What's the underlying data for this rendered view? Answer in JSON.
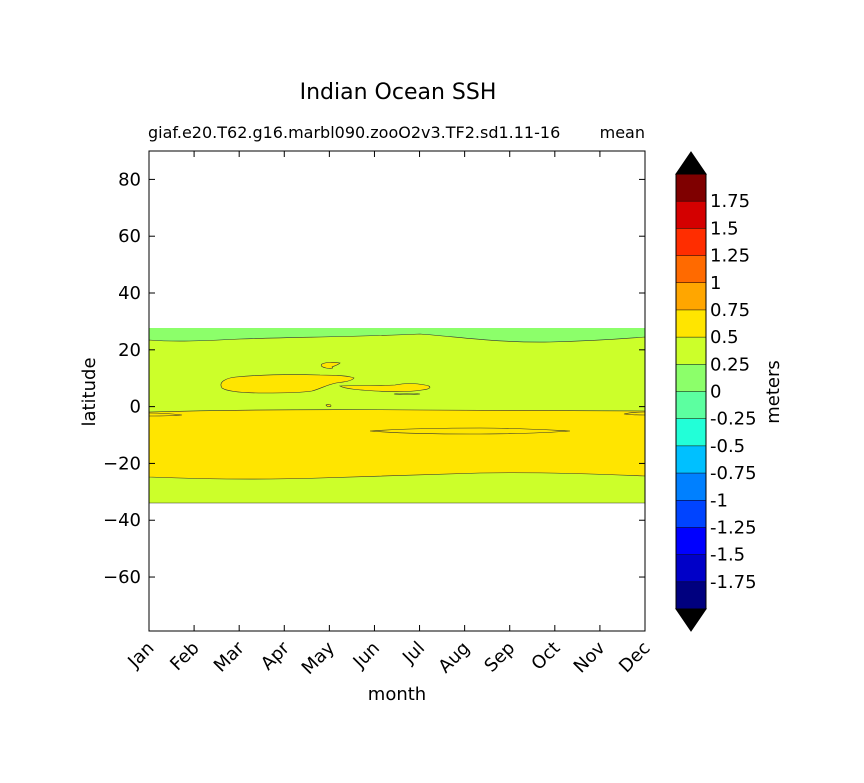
{
  "chart_data": {
    "type": "heatmap",
    "title": "Indian Ocean SSH",
    "subtitle_left": "giaf.e20.T62.g16.marbl090.zooO2v3.TF2.sd1.11-16",
    "subtitle_right": "mean",
    "xlabel": "month",
    "ylabel": "latitude",
    "x_categories": [
      "Jan",
      "Feb",
      "Mar",
      "Apr",
      "May",
      "Jun",
      "Jul",
      "Aug",
      "Sep",
      "Oct",
      "Nov",
      "Dec"
    ],
    "yticks": [
      80,
      60,
      40,
      20,
      0,
      -20,
      -40,
      -60
    ],
    "ytick_labels": [
      "80",
      "60",
      "40",
      "20",
      "0",
      "−20",
      "−40",
      "−60"
    ],
    "ylim": [
      -79,
      90
    ],
    "colorbar": {
      "label": "meters",
      "levels": [
        -2,
        -1.75,
        -1.5,
        -1.25,
        -1,
        -0.75,
        -0.5,
        -0.25,
        0,
        0.25,
        0.5,
        0.75,
        1,
        1.25,
        1.5,
        1.75,
        2
      ],
      "colors": [
        "#00007f",
        "#0000c8",
        "#0000ff",
        "#0044ff",
        "#0080ff",
        "#00c0ff",
        "#22ffd8",
        "#5cffa0",
        "#8cff6a",
        "#ccff2a",
        "#ffe500",
        "#ffa600",
        "#ff6a00",
        "#ff2d00",
        "#d40000",
        "#7f0000"
      ],
      "under_color": "#000000",
      "over_color": "#000000",
      "tick_labels": [
        "1.75",
        "1.5",
        "1.25",
        "1",
        "0.75",
        "0.5",
        "0.25",
        "0",
        "-0.25",
        "-0.5",
        "-0.75",
        "-1",
        "-1.25",
        "-1.5",
        "-1.75"
      ]
    },
    "regions": [
      {
        "name": "0 to 0.25 band",
        "level_range": [
          0,
          0.25
        ],
        "lat_range": [
          -34,
          27.5
        ],
        "color": "#8cff6a"
      },
      {
        "name": "0.25 to 0.5 band",
        "level_range": [
          0.25,
          0.5
        ],
        "lat_range": [
          -34,
          25
        ],
        "color": "#ccff2a"
      },
      {
        "name": "0.5 to 0.75 band",
        "level_range": [
          0.5,
          0.75
        ],
        "lat_range": [
          -26,
          -1.5
        ],
        "color": "#ffe500"
      }
    ]
  }
}
